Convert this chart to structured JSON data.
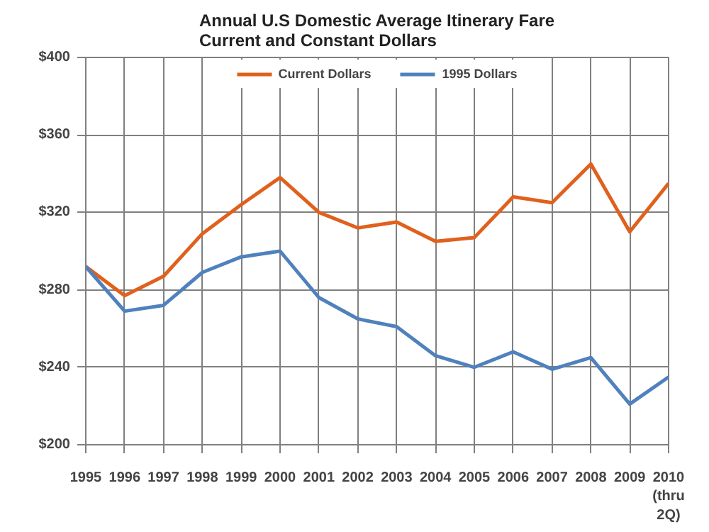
{
  "chart_data": {
    "type": "line",
    "title": "Annual U.S Domestic Average Itinerary Fare\nCurrent and Constant Dollars",
    "categories": [
      "1995",
      "1996",
      "1997",
      "1998",
      "1999",
      "2000",
      "2001",
      "2002",
      "2003",
      "2004",
      "2005",
      "2006",
      "2007",
      "2008",
      "2009",
      "2010\n(thru\n2Q)"
    ],
    "series": [
      {
        "name": "Current Dollars",
        "color": "#e0601c",
        "values": [
          292,
          277,
          287,
          309,
          324,
          338,
          320,
          312,
          315,
          305,
          307,
          328,
          325,
          345,
          310,
          335
        ]
      },
      {
        "name": "1995 Dollars",
        "color": "#4f81bd",
        "values": [
          292,
          269,
          272,
          289,
          297,
          300,
          276,
          265,
          261,
          246,
          240,
          248,
          239,
          245,
          221,
          235
        ]
      }
    ],
    "ylim": [
      200,
      400
    ],
    "yticks": [
      {
        "value": 200,
        "label": "$200"
      },
      {
        "value": 240,
        "label": "$240"
      },
      {
        "value": 280,
        "label": "$280"
      },
      {
        "value": 320,
        "label": "$320"
      },
      {
        "value": 360,
        "label": "$360"
      },
      {
        "value": 400,
        "label": "$400"
      }
    ],
    "grid": true,
    "legend": "top",
    "marker": "none",
    "line_style": "solid"
  }
}
